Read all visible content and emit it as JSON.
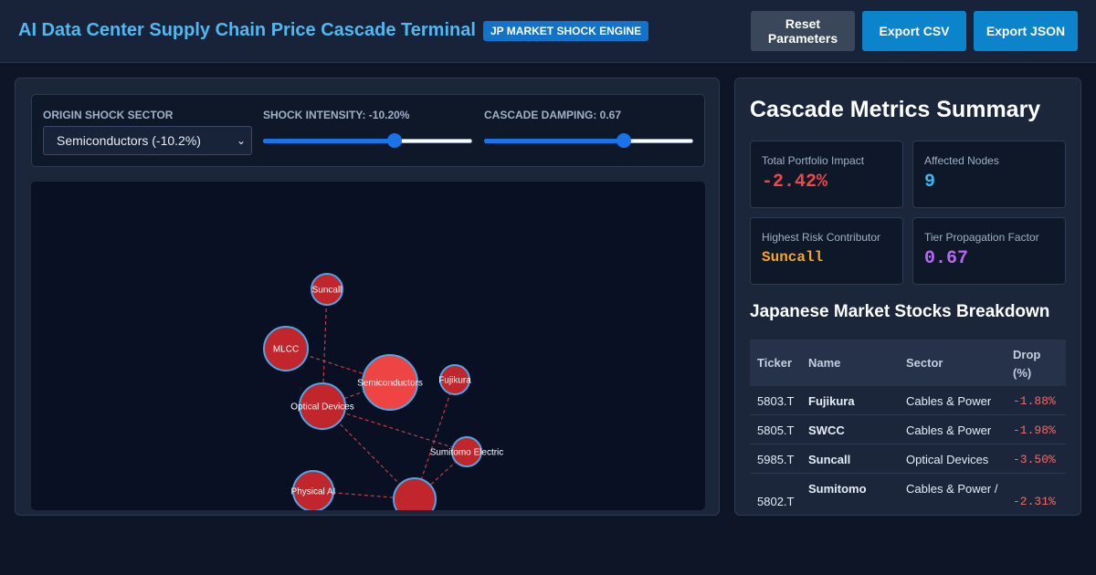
{
  "header": {
    "title": "AI Data Center Supply Chain Price Cascade Terminal",
    "badge": "JP MARKET SHOCK ENGINE",
    "reset_label": "Reset Parameters",
    "csv_label": "Export CSV",
    "json_label": "Export JSON"
  },
  "controls": {
    "origin_label": "Origin Shock Sector",
    "origin_value": "Semiconductors (-10.2%)",
    "intensity_label": "Shock Intensity: -10.20%",
    "intensity_level": 0.63,
    "damping_label": "Cascade Damping: 0.67",
    "damping_level": 0.67
  },
  "graph": {
    "nodes": [
      {
        "id": "suncall",
        "label": "Suncall"
      },
      {
        "id": "mlcc",
        "label": "MLCC"
      },
      {
        "id": "semiconductors",
        "label": "Semiconductors"
      },
      {
        "id": "fujikura",
        "label": "Fujikura"
      },
      {
        "id": "optical",
        "label": "Optical Devices"
      },
      {
        "id": "sumitomo",
        "label": "Sumitomo Electric"
      },
      {
        "id": "physical-ai",
        "label": "Physical AI"
      },
      {
        "id": "hub",
        "label": ""
      }
    ],
    "edges": [
      [
        "suncall",
        "optical"
      ],
      [
        "mlcc",
        "semiconductors"
      ],
      [
        "semiconductors",
        "optical"
      ],
      [
        "optical",
        "sumitomo"
      ],
      [
        "optical",
        "hub"
      ],
      [
        "fujikura",
        "hub"
      ],
      [
        "sumitomo",
        "hub"
      ],
      [
        "physical-ai",
        "hub"
      ]
    ],
    "colors": {
      "origin": "#ef4444",
      "affected": "#c0262b",
      "stroke": "#4aa8e8",
      "edge": "#e0444a"
    }
  },
  "summary": {
    "title": "Cascade Metrics Summary",
    "metrics": [
      {
        "label": "Total Portfolio Impact",
        "value": "-2.42%",
        "color": "#f04848"
      },
      {
        "label": "Affected Nodes",
        "value": "9",
        "color": "#3cb4f0"
      },
      {
        "label": "Highest Risk Contributor",
        "value": "Suncall",
        "color": "#f5a623"
      },
      {
        "label": "Tier Propagation Factor",
        "value": "0.67",
        "color": "#b868f0"
      }
    ],
    "breakdown_title": "Japanese Market Stocks Breakdown",
    "columns": [
      "Ticker",
      "Name",
      "Sector",
      "Drop (%)"
    ],
    "rows": [
      {
        "ticker": "5803.T",
        "name": "Fujikura",
        "sector": "Cables & Power",
        "drop": "-1.88%"
      },
      {
        "ticker": "5805.T",
        "name": "SWCC",
        "sector": "Cables & Power",
        "drop": "-1.98%"
      },
      {
        "ticker": "5985.T",
        "name": "Suncall",
        "sector": "Optical Devices",
        "drop": "-3.50%"
      },
      {
        "ticker": "5802.T",
        "name": "Sumitomo",
        "sector": "Cables & Power /",
        "drop": "-2.31%"
      }
    ]
  }
}
